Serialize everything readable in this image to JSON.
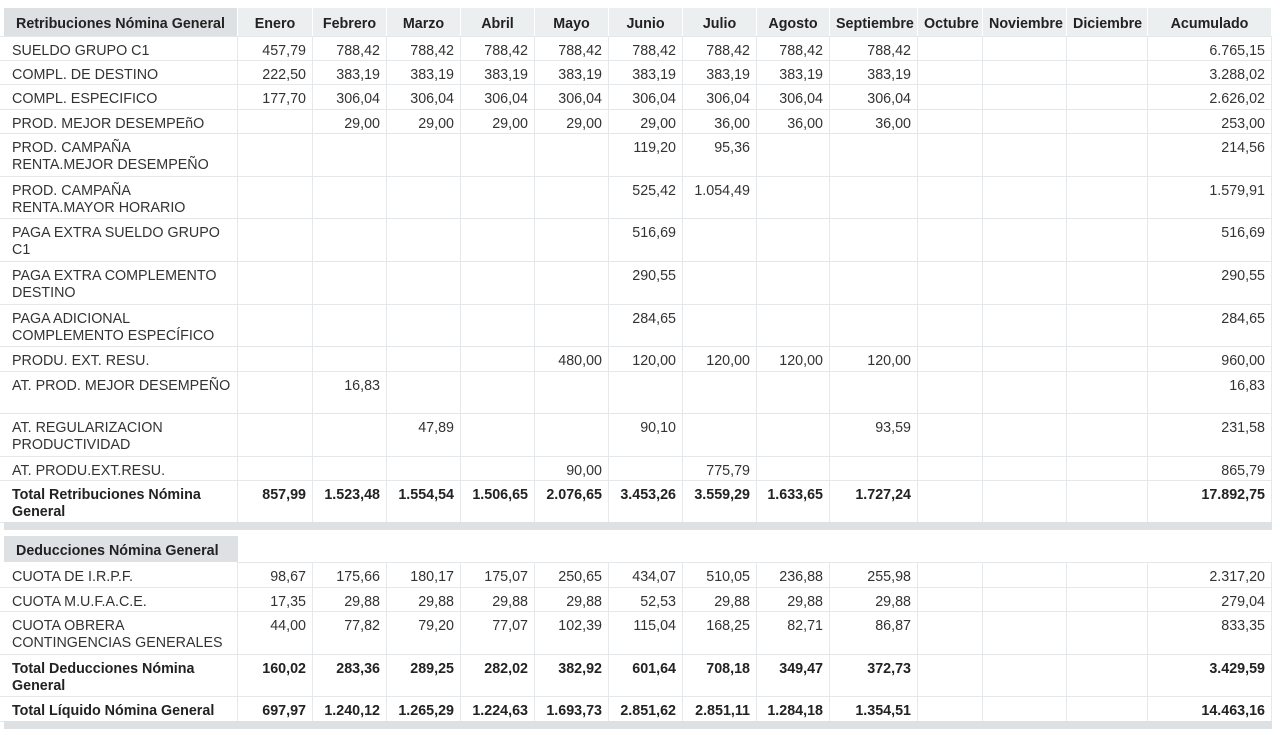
{
  "months": [
    "Enero",
    "Febrero",
    "Marzo",
    "Abril",
    "Mayo",
    "Junio",
    "Julio",
    "Agosto",
    "Septiembre",
    "Octubre",
    "Noviembre",
    "Diciembre"
  ],
  "accumulated_label": "Acumulado",
  "retribuciones": {
    "title": "Retribuciones Nómina General",
    "rows": [
      {
        "label": "SUELDO GRUPO C1",
        "values": [
          "457,79",
          "788,42",
          "788,42",
          "788,42",
          "788,42",
          "788,42",
          "788,42",
          "788,42",
          "788,42",
          "",
          "",
          ""
        ],
        "total": "6.765,15"
      },
      {
        "label": "COMPL. DE DESTINO",
        "values": [
          "222,50",
          "383,19",
          "383,19",
          "383,19",
          "383,19",
          "383,19",
          "383,19",
          "383,19",
          "383,19",
          "",
          "",
          ""
        ],
        "total": "3.288,02"
      },
      {
        "label": "COMPL. ESPECIFICO",
        "values": [
          "177,70",
          "306,04",
          "306,04",
          "306,04",
          "306,04",
          "306,04",
          "306,04",
          "306,04",
          "306,04",
          "",
          "",
          ""
        ],
        "total": "2.626,02"
      },
      {
        "label": "PROD. MEJOR DESEMPEñO",
        "values": [
          "",
          "29,00",
          "29,00",
          "29,00",
          "29,00",
          "29,00",
          "36,00",
          "36,00",
          "36,00",
          "",
          "",
          ""
        ],
        "total": "253,00"
      },
      {
        "label": "PROD. CAMPAÑA RENTA.MEJOR DESEMPEÑO",
        "values": [
          "",
          "",
          "",
          "",
          "",
          "119,20",
          "95,36",
          "",
          "",
          "",
          "",
          ""
        ],
        "total": "214,56"
      },
      {
        "label": "PROD. CAMPAÑA RENTA.MAYOR HORARIO",
        "values": [
          "",
          "",
          "",
          "",
          "",
          "525,42",
          "1.054,49",
          "",
          "",
          "",
          "",
          ""
        ],
        "total": "1.579,91"
      },
      {
        "label": "PAGA EXTRA SUELDO GRUPO C1",
        "values": [
          "",
          "",
          "",
          "",
          "",
          "516,69",
          "",
          "",
          "",
          "",
          "",
          ""
        ],
        "total": "516,69"
      },
      {
        "label": "PAGA EXTRA COMPLEMENTO DESTINO",
        "values": [
          "",
          "",
          "",
          "",
          "",
          "290,55",
          "",
          "",
          "",
          "",
          "",
          ""
        ],
        "total": "290,55"
      },
      {
        "label": "PAGA ADICIONAL COMPLEMENTO ESPECÍFICO",
        "values": [
          "",
          "",
          "",
          "",
          "",
          "284,65",
          "",
          "",
          "",
          "",
          "",
          ""
        ],
        "total": "284,65"
      },
      {
        "label": "PRODU. EXT. RESU.",
        "values": [
          "",
          "",
          "",
          "",
          "480,00",
          "120,00",
          "120,00",
          "120,00",
          "120,00",
          "",
          "",
          ""
        ],
        "total": "960,00"
      },
      {
        "label": "AT. PROD. MEJOR DESEMPEÑO",
        "values": [
          "",
          "16,83",
          "",
          "",
          "",
          "",
          "",
          "",
          "",
          "",
          "",
          ""
        ],
        "total": "16,83"
      },
      {
        "label": "AT. REGULARIZACION PRODUCTIVIDAD",
        "values": [
          "",
          "",
          "47,89",
          "",
          "",
          "90,10",
          "",
          "",
          "93,59",
          "",
          "",
          ""
        ],
        "total": "231,58"
      },
      {
        "label": "AT. PRODU.EXT.RESU.",
        "values": [
          "",
          "",
          "",
          "",
          "90,00",
          "",
          "775,79",
          "",
          "",
          "",
          "",
          ""
        ],
        "total": "865,79"
      }
    ],
    "total_row": {
      "label": "Total Retribuciones Nómina General",
      "values": [
        "857,99",
        "1.523,48",
        "1.554,54",
        "1.506,65",
        "2.076,65",
        "3.453,26",
        "3.559,29",
        "1.633,65",
        "1.727,24",
        "",
        "",
        ""
      ],
      "total": "17.892,75"
    }
  },
  "deducciones": {
    "title": "Deducciones Nómina General",
    "rows": [
      {
        "label": "CUOTA DE I.R.P.F.",
        "values": [
          "98,67",
          "175,66",
          "180,17",
          "175,07",
          "250,65",
          "434,07",
          "510,05",
          "236,88",
          "255,98",
          "",
          "",
          ""
        ],
        "total": "2.317,20"
      },
      {
        "label": "CUOTA M.U.F.A.C.E.",
        "values": [
          "17,35",
          "29,88",
          "29,88",
          "29,88",
          "29,88",
          "52,53",
          "29,88",
          "29,88",
          "29,88",
          "",
          "",
          ""
        ],
        "total": "279,04"
      },
      {
        "label": "CUOTA OBRERA CONTINGENCIAS GENERALES",
        "values": [
          "44,00",
          "77,82",
          "79,20",
          "77,07",
          "102,39",
          "115,04",
          "168,25",
          "82,71",
          "86,87",
          "",
          "",
          ""
        ],
        "total": "833,35"
      }
    ],
    "total_row": {
      "label": "Total Deducciones Nómina General",
      "values": [
        "160,02",
        "283,36",
        "289,25",
        "282,02",
        "382,92",
        "601,64",
        "708,18",
        "349,47",
        "372,73",
        "",
        "",
        ""
      ],
      "total": "3.429,59"
    }
  },
  "liquido": {
    "label": "Total Líquido Nómina General",
    "values": [
      "697,97",
      "1.240,12",
      "1.265,29",
      "1.224,63",
      "1.693,73",
      "2.851,62",
      "2.851,11",
      "1.284,18",
      "1.354,51",
      "",
      "",
      ""
    ],
    "total": "14.463,16"
  }
}
